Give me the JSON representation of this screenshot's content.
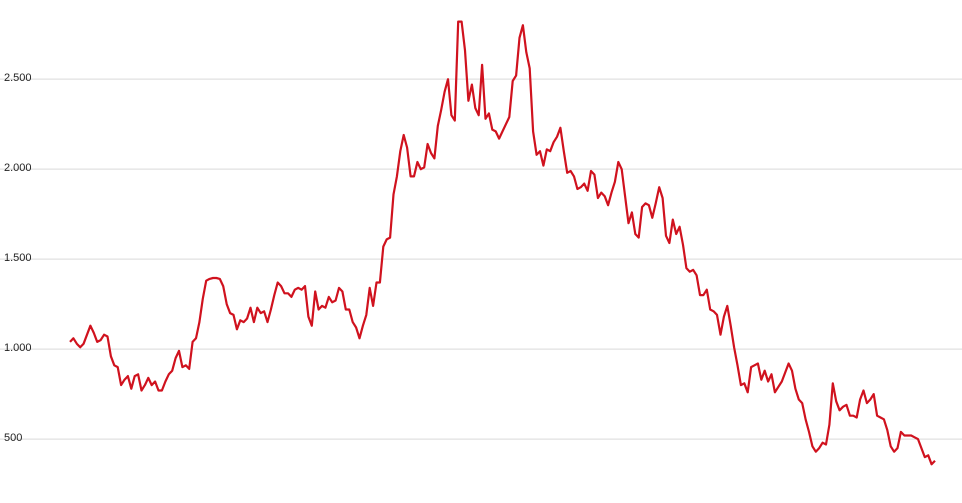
{
  "chart_data": {
    "type": "line",
    "values": [
      1040,
      1060,
      1030,
      1010,
      1030,
      1080,
      1130,
      1090,
      1040,
      1050,
      1080,
      1070,
      960,
      910,
      900,
      800,
      830,
      850,
      780,
      850,
      860,
      770,
      800,
      840,
      800,
      820,
      770,
      770,
      820,
      860,
      880,
      950,
      990,
      900,
      910,
      890,
      1040,
      1060,
      1150,
      1280,
      1380,
      1390,
      1395,
      1395,
      1390,
      1350,
      1250,
      1200,
      1190,
      1110,
      1160,
      1150,
      1170,
      1230,
      1150,
      1230,
      1200,
      1210,
      1150,
      1220,
      1300,
      1370,
      1350,
      1310,
      1310,
      1290,
      1330,
      1340,
      1330,
      1350,
      1180,
      1130,
      1320,
      1220,
      1240,
      1230,
      1290,
      1260,
      1270,
      1340,
      1320,
      1220,
      1220,
      1150,
      1120,
      1060,
      1130,
      1190,
      1340,
      1240,
      1370,
      1370,
      1570,
      1610,
      1620,
      1860,
      1960,
      2100,
      2190,
      2120,
      1960,
      1960,
      2040,
      2000,
      2010,
      2140,
      2090,
      2060,
      2240,
      2330,
      2430,
      2500,
      2300,
      2270,
      2820,
      2820,
      2660,
      2380,
      2470,
      2340,
      2300,
      2580,
      2280,
      2310,
      2220,
      2210,
      2170,
      2210,
      2250,
      2290,
      2490,
      2520,
      2730,
      2800,
      2650,
      2560,
      2210,
      2080,
      2100,
      2020,
      2110,
      2100,
      2150,
      2180,
      2230,
      2100,
      1980,
      1990,
      1960,
      1890,
      1900,
      1920,
      1880,
      1990,
      1970,
      1840,
      1870,
      1850,
      1800,
      1870,
      1930,
      2040,
      2000,
      1850,
      1700,
      1760,
      1640,
      1620,
      1790,
      1810,
      1800,
      1730,
      1810,
      1900,
      1840,
      1630,
      1590,
      1720,
      1640,
      1680,
      1580,
      1450,
      1430,
      1440,
      1410,
      1300,
      1300,
      1330,
      1220,
      1210,
      1190,
      1080,
      1180,
      1240,
      1130,
      1010,
      910,
      800,
      810,
      760,
      900,
      910,
      920,
      830,
      880,
      820,
      860,
      760,
      790,
      820,
      870,
      920,
      880,
      780,
      720,
      700,
      610,
      540,
      460,
      430,
      450,
      480,
      470,
      580,
      810,
      710,
      660,
      680,
      690,
      630,
      630,
      620,
      720,
      770,
      700,
      720,
      750,
      630,
      620,
      610,
      550,
      460,
      430,
      450,
      540,
      520,
      520,
      520,
      510,
      500,
      450,
      400,
      410,
      360,
      380
    ],
    "color": "#d0121e",
    "ylim": [
      145,
      2940
    ],
    "yticks": [
      500,
      {
        "value": 1000,
        "label": "1.000"
      },
      {
        "value": 1500,
        "label": "1.500"
      },
      {
        "value": 2000,
        "label": "2.000"
      },
      {
        "value": 2500,
        "label": "2.500"
      }
    ],
    "grid": true
  }
}
